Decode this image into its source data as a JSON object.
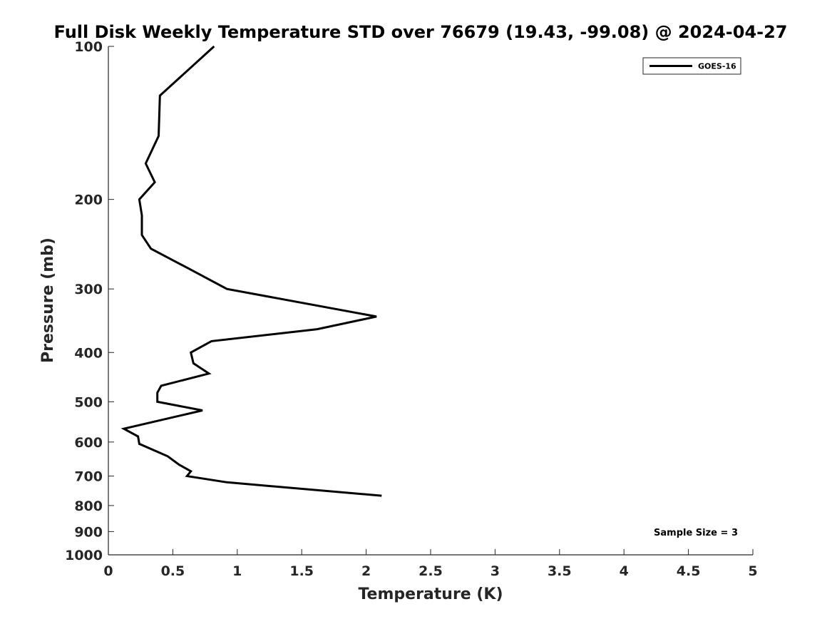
{
  "chart_data": {
    "type": "line",
    "title": "Full Disk Weekly Temperature STD over 76679 (19.43, -99.08) @ 2024-04-27",
    "xlabel": "Temperature (K)",
    "ylabel": "Pressure (mb)",
    "xlim": [
      0,
      5
    ],
    "ylim": [
      100,
      1000
    ],
    "y_scale": "log",
    "y_reversed": true,
    "x_ticks": [
      "0",
      "0.5",
      "1",
      "1.5",
      "2",
      "2.5",
      "3",
      "3.5",
      "4",
      "4.5",
      "5"
    ],
    "y_ticks": [
      "100",
      "200",
      "300",
      "400",
      "500",
      "600",
      "700",
      "800",
      "900",
      "1000"
    ],
    "grid": false,
    "legend_position": "top-right",
    "series": [
      {
        "name": "GOES-16",
        "color": "#000000",
        "points": [
          {
            "x": 0.82,
            "y": 100
          },
          {
            "x": 0.4,
            "y": 125
          },
          {
            "x": 0.39,
            "y": 150
          },
          {
            "x": 0.29,
            "y": 170
          },
          {
            "x": 0.36,
            "y": 185
          },
          {
            "x": 0.24,
            "y": 200
          },
          {
            "x": 0.26,
            "y": 215
          },
          {
            "x": 0.26,
            "y": 235
          },
          {
            "x": 0.33,
            "y": 250
          },
          {
            "x": 0.64,
            "y": 275
          },
          {
            "x": 0.92,
            "y": 300
          },
          {
            "x": 2.08,
            "y": 340
          },
          {
            "x": 1.62,
            "y": 360
          },
          {
            "x": 0.8,
            "y": 380
          },
          {
            "x": 0.64,
            "y": 400
          },
          {
            "x": 0.66,
            "y": 420
          },
          {
            "x": 0.78,
            "y": 440
          },
          {
            "x": 0.41,
            "y": 465
          },
          {
            "x": 0.38,
            "y": 480
          },
          {
            "x": 0.38,
            "y": 500
          },
          {
            "x": 0.73,
            "y": 520
          },
          {
            "x": 0.12,
            "y": 565
          },
          {
            "x": 0.23,
            "y": 585
          },
          {
            "x": 0.24,
            "y": 605
          },
          {
            "x": 0.46,
            "y": 640
          },
          {
            "x": 0.55,
            "y": 665
          },
          {
            "x": 0.64,
            "y": 685
          },
          {
            "x": 0.61,
            "y": 700
          },
          {
            "x": 0.92,
            "y": 720
          },
          {
            "x": 2.12,
            "y": 765
          }
        ]
      }
    ],
    "annotations": [
      "Sample Size = 3"
    ]
  }
}
